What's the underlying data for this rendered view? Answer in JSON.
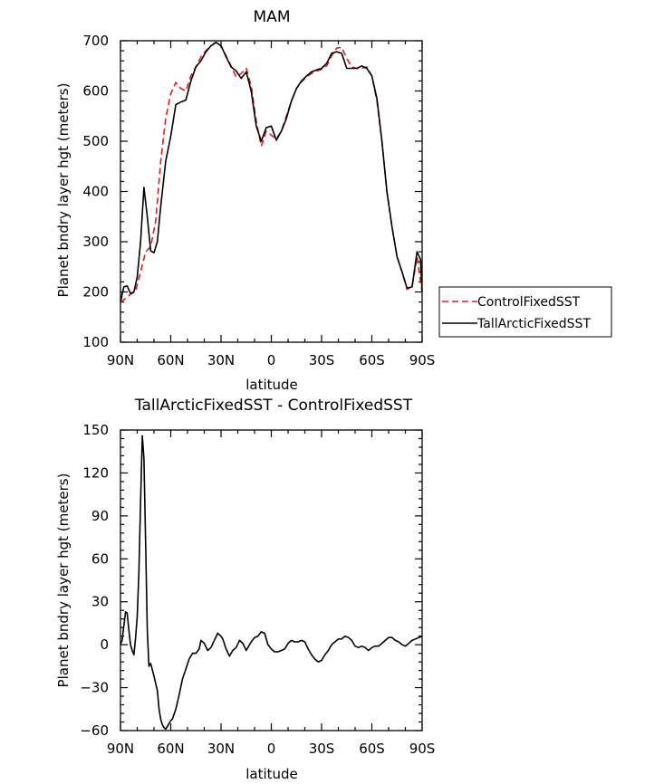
{
  "chart_data": [
    {
      "type": "line",
      "title": "MAM",
      "xlabel": "latitude",
      "ylabel": "Planet bndry layer hgt (meters)",
      "xlim": [
        90,
        -90
      ],
      "ylim": [
        100,
        700
      ],
      "xticks": [
        90,
        60,
        30,
        0,
        -30,
        -60,
        -90
      ],
      "xtick_labels": [
        "90N",
        "60N",
        "30N",
        "0",
        "30S",
        "60S",
        "90S"
      ],
      "yticks": [
        100,
        200,
        300,
        400,
        500,
        600,
        700
      ],
      "grid": false,
      "legend_position": "right",
      "series": [
        {
          "name": "ControlFixedSST",
          "color": "#e8191c",
          "style": "dashed",
          "points": [
            [
              90,
              180
            ],
            [
              87,
              187
            ],
            [
              84,
              195
            ],
            [
              81,
              202
            ],
            [
              78,
              240
            ],
            [
              75,
              280
            ],
            [
              72,
              290
            ],
            [
              69,
              340
            ],
            [
              66,
              460
            ],
            [
              63,
              545
            ],
            [
              60,
              595
            ],
            [
              57,
              617
            ],
            [
              54,
              605
            ],
            [
              51,
              600
            ],
            [
              48,
              630
            ],
            [
              45,
              648
            ],
            [
              42,
              668
            ],
            [
              39,
              680
            ],
            [
              36,
              690
            ],
            [
              33,
              696
            ],
            [
              30,
              690
            ],
            [
              27,
              670
            ],
            [
              24,
              650
            ],
            [
              21,
              628
            ],
            [
              18,
              635
            ],
            [
              15,
              645
            ],
            [
              12,
              610
            ],
            [
              9,
              540
            ],
            [
              6,
              490
            ],
            [
              3,
              520
            ],
            [
              0,
              512
            ],
            [
              -3,
              505
            ],
            [
              -6,
              520
            ],
            [
              -9,
              550
            ],
            [
              -12,
              580
            ],
            [
              -15,
              605
            ],
            [
              -18,
              618
            ],
            [
              -21,
              628
            ],
            [
              -24,
              635
            ],
            [
              -27,
              640
            ],
            [
              -30,
              643
            ],
            [
              -33,
              650
            ],
            [
              -36,
              670
            ],
            [
              -39,
              685
            ],
            [
              -42,
              687
            ],
            [
              -45,
              665
            ],
            [
              -48,
              648
            ],
            [
              -51,
              645
            ],
            [
              -54,
              645
            ],
            [
              -57,
              648
            ],
            [
              -60,
              630
            ],
            [
              -63,
              580
            ],
            [
              -66,
              500
            ],
            [
              -69,
              400
            ],
            [
              -72,
              330
            ],
            [
              -75,
              270
            ],
            [
              -78,
              240
            ],
            [
              -81,
              205
            ],
            [
              -84,
              210
            ],
            [
              -87,
              270
            ],
            [
              -90,
              200
            ]
          ]
        },
        {
          "name": "TallArcticFixedSST",
          "color": "#000000",
          "style": "solid",
          "points": [
            [
              90,
              180
            ],
            [
              88,
              210
            ],
            [
              86,
              212
            ],
            [
              84,
              197
            ],
            [
              82,
              200
            ],
            [
              80,
              230
            ],
            [
              78,
              300
            ],
            [
              76,
              408
            ],
            [
              74,
              350
            ],
            [
              72,
              282
            ],
            [
              70,
              278
            ],
            [
              68,
              300
            ],
            [
              66,
              370
            ],
            [
              63,
              460
            ],
            [
              60,
              510
            ],
            [
              57,
              573
            ],
            [
              54,
              578
            ],
            [
              51,
              582
            ],
            [
              48,
              620
            ],
            [
              45,
              648
            ],
            [
              42,
              660
            ],
            [
              39,
              678
            ],
            [
              36,
              690
            ],
            [
              33,
              697
            ],
            [
              30,
              690
            ],
            [
              27,
              668
            ],
            [
              24,
              648
            ],
            [
              21,
              640
            ],
            [
              18,
              625
            ],
            [
              15,
              638
            ],
            [
              12,
              600
            ],
            [
              9,
              530
            ],
            [
              6,
              500
            ],
            [
              3,
              527
            ],
            [
              0,
              530
            ],
            [
              -3,
              502
            ],
            [
              -6,
              520
            ],
            [
              -9,
              545
            ],
            [
              -12,
              580
            ],
            [
              -15,
              605
            ],
            [
              -18,
              620
            ],
            [
              -21,
              630
            ],
            [
              -24,
              638
            ],
            [
              -27,
              642
            ],
            [
              -30,
              645
            ],
            [
              -33,
              655
            ],
            [
              -36,
              675
            ],
            [
              -39,
              678
            ],
            [
              -42,
              675
            ],
            [
              -45,
              645
            ],
            [
              -48,
              645
            ],
            [
              -51,
              645
            ],
            [
              -54,
              650
            ],
            [
              -57,
              645
            ],
            [
              -60,
              630
            ],
            [
              -63,
              585
            ],
            [
              -66,
              500
            ],
            [
              -69,
              400
            ],
            [
              -72,
              330
            ],
            [
              -75,
              270
            ],
            [
              -78,
              240
            ],
            [
              -81,
              208
            ],
            [
              -84,
              210
            ],
            [
              -87,
              280
            ],
            [
              -89,
              265
            ],
            [
              -90,
              200
            ]
          ]
        }
      ],
      "legend": [
        {
          "label": "ControlFixedSST",
          "color": "#e8191c",
          "style": "dashed"
        },
        {
          "label": "TallArcticFixedSST",
          "color": "#000000",
          "style": "solid"
        }
      ]
    },
    {
      "type": "line",
      "title": "TallArcticFixedSST - ControlFixedSST",
      "xlabel": "latitude",
      "ylabel": "Planet bndry layer hgt (meters)",
      "xlim": [
        90,
        -90
      ],
      "ylim": [
        -60,
        150
      ],
      "xticks": [
        90,
        60,
        30,
        0,
        -30,
        -60,
        -90
      ],
      "xtick_labels": [
        "90N",
        "60N",
        "30N",
        "0",
        "30S",
        "60S",
        "90S"
      ],
      "yticks": [
        -60,
        -30,
        0,
        30,
        60,
        90,
        120,
        150
      ],
      "ytick_labels": [
        "−60",
        "−30",
        "0",
        "30",
        "60",
        "90",
        "120",
        "150"
      ],
      "grid": false,
      "series": [
        {
          "color": "#000000",
          "style": "solid",
          "points": [
            [
              90,
              0
            ],
            [
              89,
              3
            ],
            [
              88,
              13
            ],
            [
              87,
              23
            ],
            [
              86,
              22
            ],
            [
              85,
              10
            ],
            [
              84,
              0
            ],
            [
              83,
              -4
            ],
            [
              82,
              -7
            ],
            [
              81,
              5
            ],
            [
              80,
              20
            ],
            [
              79,
              50
            ],
            [
              78,
              100
            ],
            [
              77,
              146
            ],
            [
              76,
              130
            ],
            [
              75,
              70
            ],
            [
              74,
              10
            ],
            [
              73,
              -15
            ],
            [
              72,
              -13
            ],
            [
              70,
              -22
            ],
            [
              68,
              -32
            ],
            [
              67,
              -45
            ],
            [
              66,
              -52
            ],
            [
              65,
              -56
            ],
            [
              64,
              -58
            ],
            [
              63,
              -59
            ],
            [
              62,
              -57
            ],
            [
              60,
              -53
            ],
            [
              59,
              -52
            ],
            [
              57,
              -45
            ],
            [
              55,
              -35
            ],
            [
              53,
              -24
            ],
            [
              51,
              -17
            ],
            [
              49,
              -10
            ],
            [
              47,
              -6
            ],
            [
              45,
              -6
            ],
            [
              43,
              -3
            ],
            [
              42,
              3
            ],
            [
              40,
              1
            ],
            [
              38,
              -4
            ],
            [
              36,
              -2
            ],
            [
              34,
              3
            ],
            [
              32,
              8
            ],
            [
              30,
              6
            ],
            [
              29,
              4
            ],
            [
              27,
              -3
            ],
            [
              25,
              -8
            ],
            [
              23,
              -4
            ],
            [
              21,
              -2
            ],
            [
              19,
              3
            ],
            [
              17,
              1
            ],
            [
              15,
              -4
            ],
            [
              14,
              -2
            ],
            [
              12,
              2
            ],
            [
              10,
              5
            ],
            [
              8,
              6
            ],
            [
              6,
              9
            ],
            [
              4,
              8
            ],
            [
              2,
              0
            ],
            [
              0,
              -3
            ],
            [
              -2,
              -5
            ],
            [
              -4,
              -5
            ],
            [
              -6,
              -4
            ],
            [
              -8,
              -3
            ],
            [
              -10,
              1
            ],
            [
              -12,
              3
            ],
            [
              -14,
              2
            ],
            [
              -16,
              2
            ],
            [
              -18,
              3
            ],
            [
              -20,
              2
            ],
            [
              -22,
              -3
            ],
            [
              -24,
              -7
            ],
            [
              -26,
              -10
            ],
            [
              -28,
              -12
            ],
            [
              -30,
              -11
            ],
            [
              -32,
              -7
            ],
            [
              -34,
              -4
            ],
            [
              -36,
              0
            ],
            [
              -38,
              2
            ],
            [
              -40,
              4
            ],
            [
              -42,
              4
            ],
            [
              -44,
              6
            ],
            [
              -46,
              5
            ],
            [
              -48,
              3
            ],
            [
              -50,
              -1
            ],
            [
              -52,
              -2
            ],
            [
              -54,
              -1
            ],
            [
              -56,
              -2
            ],
            [
              -58,
              -4
            ],
            [
              -60,
              -2
            ],
            [
              -62,
              -1
            ],
            [
              -64,
              -1
            ],
            [
              -66,
              1
            ],
            [
              -68,
              3
            ],
            [
              -70,
              5
            ],
            [
              -72,
              5
            ],
            [
              -74,
              3
            ],
            [
              -76,
              2
            ],
            [
              -78,
              0
            ],
            [
              -80,
              -1
            ],
            [
              -82,
              1
            ],
            [
              -84,
              3
            ],
            [
              -86,
              4
            ],
            [
              -88,
              5
            ],
            [
              -90,
              6
            ]
          ]
        }
      ]
    }
  ]
}
